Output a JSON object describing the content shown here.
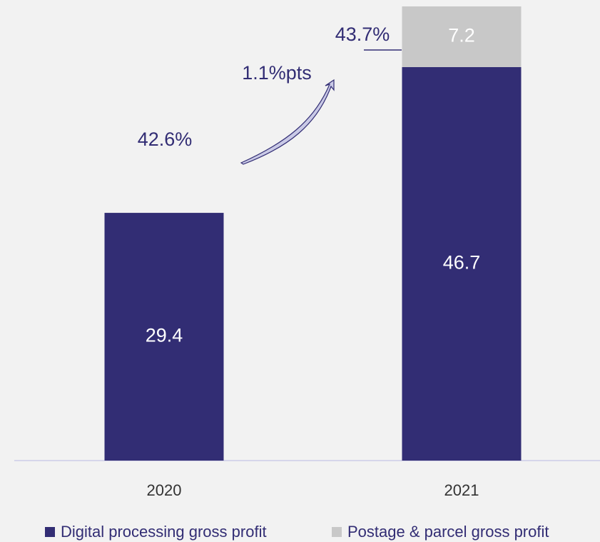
{
  "chart_data": {
    "type": "stacked_bar",
    "categories": [
      "2020",
      "2021"
    ],
    "series": [
      {
        "name": "Digital processing gross profit",
        "color": "#322d74",
        "values": [
          29.4,
          46.7
        ]
      },
      {
        "name": "Postage & parcel gross profit",
        "color": "#c8c8c8",
        "values": [
          null,
          7.2
        ]
      }
    ],
    "annotations": [
      "42.6%",
      "43.7%",
      "1.1%pts"
    ],
    "legend": "bottom"
  }
}
